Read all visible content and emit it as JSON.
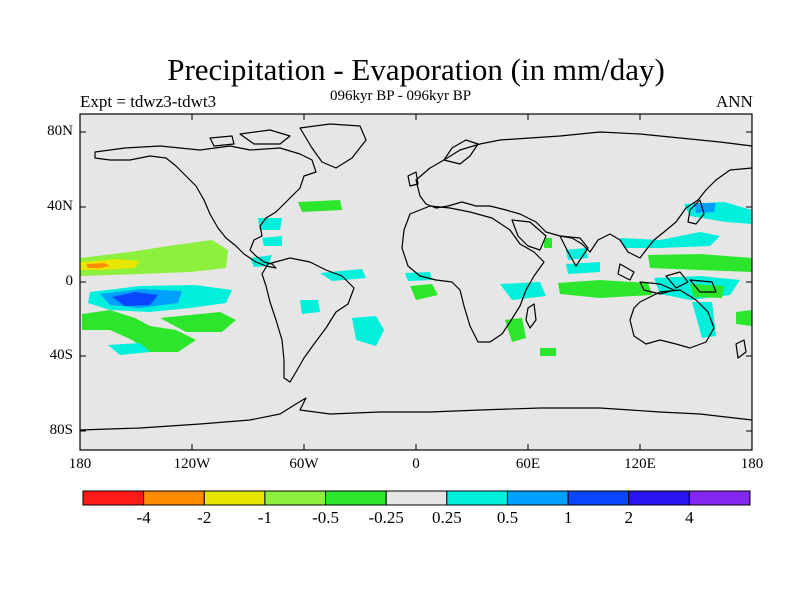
{
  "title": "Precipitation - Evaporation (in mm/day)",
  "subtitle": "096kyr BP - 096kyr BP",
  "left_label": "Expt = tdwz3-tdwt3",
  "right_label": "ANN",
  "lat_ticks": [
    "80N",
    "40N",
    "0",
    "40S",
    "80S"
  ],
  "lon_ticks": [
    "180",
    "120W",
    "60W",
    "0",
    "60E",
    "120E",
    "180"
  ],
  "colorbar": {
    "colors": [
      "#ff1a1a",
      "#ff8c00",
      "#e6e600",
      "#8cf03c",
      "#2ce62c",
      "#e6e6e6",
      "#00f0dc",
      "#00a0ff",
      "#0a46ff",
      "#2814f0",
      "#8228f0"
    ],
    "labels": [
      "-4",
      "-2",
      "-1",
      "-0.5",
      "-0.25",
      "0.25",
      "0.5",
      "1",
      "2",
      "4"
    ]
  },
  "colors": {
    "ocean_background": "#e6e6e6",
    "coastline": "#000000"
  }
}
